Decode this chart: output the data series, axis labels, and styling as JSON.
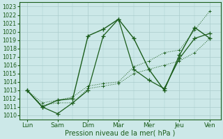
{
  "x_labels": [
    "Lun",
    "Sam",
    "Dim",
    "Mar",
    "Mer",
    "Jeu",
    "Ven"
  ],
  "ylim": [
    1009.5,
    1023.5
  ],
  "yticks": [
    1010,
    1011,
    1012,
    1013,
    1014,
    1015,
    1016,
    1017,
    1018,
    1019,
    1020,
    1021,
    1022,
    1023
  ],
  "bg_color": "#cce8e8",
  "grid_color": "#aacccc",
  "line_color": "#1a5c1a",
  "xlabel": "Pression niveau de la mer( hPa )",
  "line1_x": [
    0,
    0.5,
    1.0,
    1.5,
    2.0,
    2.5,
    3.0,
    3.5,
    4.0,
    4.5,
    5.0,
    5.5,
    6.0
  ],
  "line1_y": [
    1013.0,
    1011.0,
    1011.8,
    1012.0,
    1019.5,
    1020.3,
    1021.5,
    1019.2,
    1015.5,
    1013.0,
    1017.2,
    1020.5,
    1019.2
  ],
  "line2_x": [
    0,
    0.5,
    1.0,
    1.5,
    2.0,
    2.5,
    3.0,
    3.5,
    4.0,
    4.5,
    5.0,
    5.5,
    6.0
  ],
  "line2_y": [
    1013.0,
    1011.0,
    1010.2,
    1011.5,
    1013.0,
    1019.5,
    1021.5,
    1015.5,
    1014.2,
    1013.2,
    1016.8,
    1019.2,
    1019.8
  ],
  "line3_x": [
    0,
    0.5,
    1.0,
    1.5,
    2.0,
    2.5,
    3.0,
    3.5,
    4.0,
    4.5,
    5.0,
    5.5,
    6.0
  ],
  "line3_y": [
    1013.0,
    1011.5,
    1011.8,
    1012.2,
    1013.5,
    1013.8,
    1014.0,
    1015.8,
    1016.5,
    1017.5,
    1017.8,
    1020.2,
    1022.5
  ],
  "line4_x": [
    0,
    0.5,
    1.0,
    1.5,
    2.0,
    2.5,
    3.0,
    3.5,
    4.0,
    4.5,
    5.0,
    5.5,
    6.0
  ],
  "line4_y": [
    1013.0,
    1011.2,
    1011.5,
    1011.5,
    1013.2,
    1013.5,
    1013.8,
    1015.0,
    1015.5,
    1016.0,
    1016.5,
    1017.5,
    1019.2
  ],
  "x_day_positions": [
    0,
    1,
    2,
    3,
    4,
    5,
    6
  ],
  "figsize": [
    3.2,
    2.0
  ],
  "dpi": 100
}
